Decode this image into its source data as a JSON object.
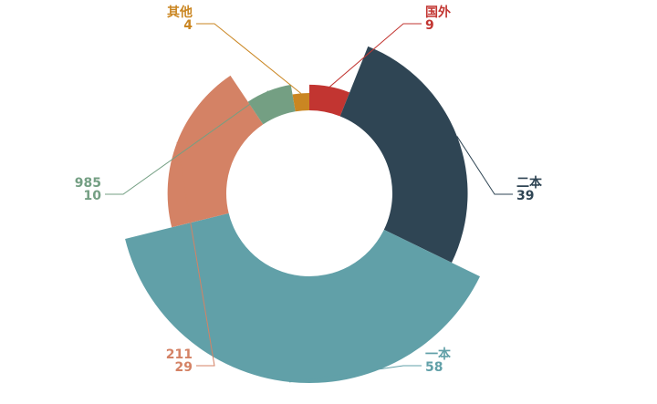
{
  "chart_data": {
    "type": "pie",
    "variant": "rose",
    "title": "",
    "slices": [
      {
        "name": "国外",
        "value": 9,
        "color": "#c23531"
      },
      {
        "name": "二本",
        "value": 39,
        "color": "#2f4554"
      },
      {
        "name": "一本",
        "value": 58,
        "color": "#61a0a8"
      },
      {
        "name": "211",
        "value": 29,
        "color": "#d48265"
      },
      {
        "name": "985",
        "value": 10,
        "color": "#749f83"
      },
      {
        "name": "其他",
        "value": 4,
        "color": "#ca8622"
      }
    ]
  }
}
